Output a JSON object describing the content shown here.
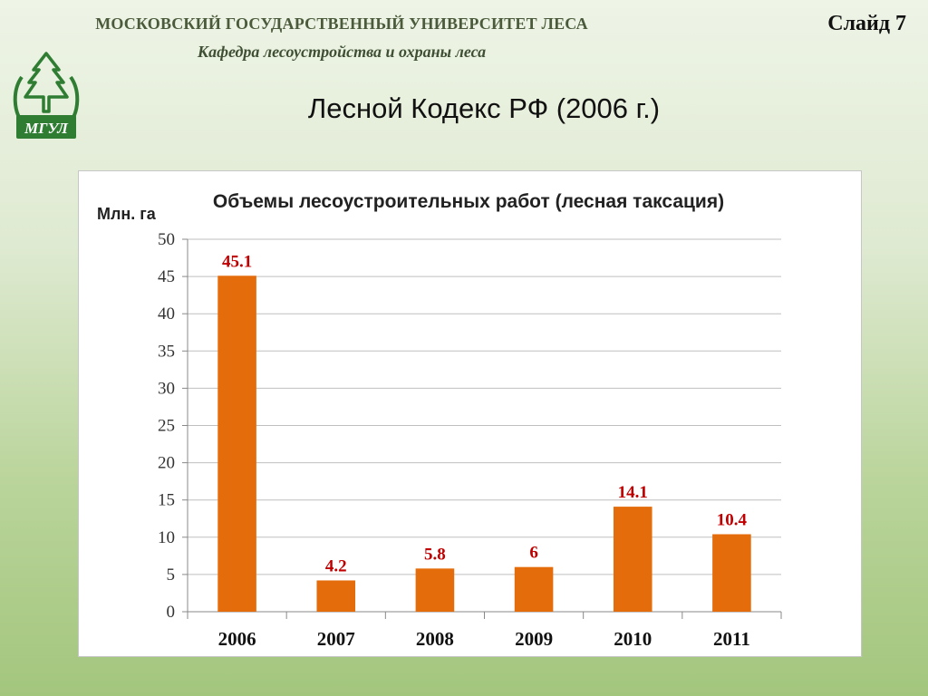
{
  "header": {
    "university": "МОСКОВСКИЙ ГОСУДАРСТВЕННЫЙ УНИВЕРСИТЕТ ЛЕСА",
    "department": "Кафедра лесоустройства и охраны леса",
    "slide_number": "Слайд 7",
    "title": "Лесной Кодекс РФ (2006 г.)"
  },
  "logo": {
    "text": "МГУЛ",
    "icon": "tree-logo-icon",
    "color": "#2e7d32"
  },
  "colors": {
    "bar": "#e46c0a",
    "data_label": "#c00000",
    "grid": "#bfbfbf",
    "axis": "#888888"
  },
  "chart_data": {
    "type": "bar",
    "title": "Объемы лесоустроительных работ (лесная таксация)",
    "ylabel": "Млн. га",
    "xlabel": "",
    "categories": [
      "2006",
      "2007",
      "2008",
      "2009",
      "2010",
      "2011"
    ],
    "values": [
      45.1,
      4.2,
      5.8,
      6,
      14.1,
      10.4
    ],
    "data_labels": [
      "45.1",
      "4.2",
      "5.8",
      "6",
      "14.1",
      "10.4"
    ],
    "ylim": [
      0,
      50
    ],
    "yticks": [
      0,
      5,
      10,
      15,
      20,
      25,
      30,
      35,
      40,
      45,
      50
    ],
    "grid": true,
    "legend": "none"
  }
}
